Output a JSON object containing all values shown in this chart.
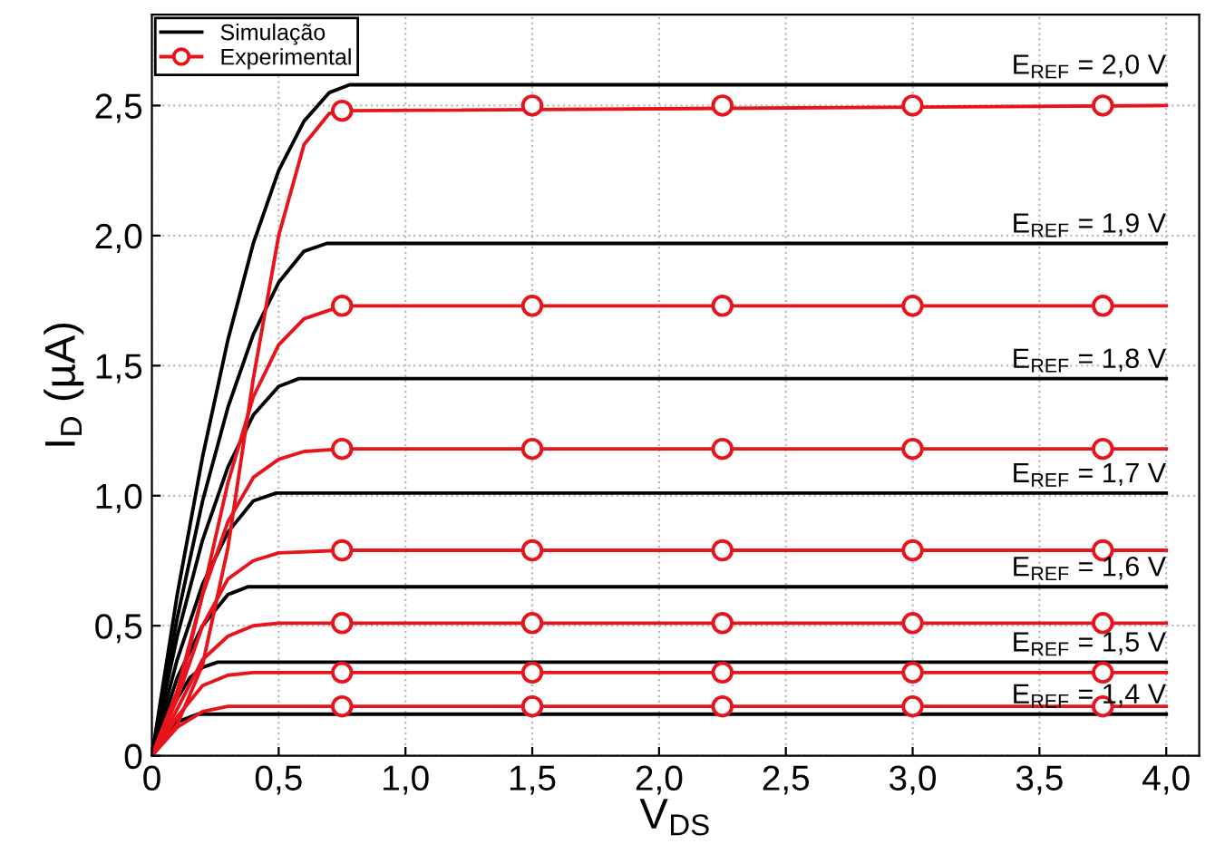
{
  "chart_data": {
    "type": "line",
    "xlabel": "V$_{DS}$",
    "ylabel": "I$_{D}$ (µA)",
    "xlim": [
      0,
      4.13
    ],
    "ylim": [
      0,
      2.85
    ],
    "xticks": [
      0,
      {
        "value": 0.5,
        "label": "0,5"
      },
      {
        "value": 1.0,
        "label": "1,0"
      },
      {
        "value": 1.5,
        "label": "1,5"
      },
      {
        "value": 2.0,
        "label": "2,0"
      },
      {
        "value": 2.5,
        "label": "2,5"
      },
      {
        "value": 3.0,
        "label": "3,0"
      },
      {
        "value": 3.5,
        "label": "3,5"
      },
      {
        "value": 4.0,
        "label": "4,0"
      }
    ],
    "yticks": [
      0,
      {
        "value": 0.5,
        "label": "0,5"
      },
      {
        "value": 1.0,
        "label": "1,0"
      },
      {
        "value": 1.5,
        "label": "1,5"
      },
      {
        "value": 2.0,
        "label": "2,0"
      },
      {
        "value": 2.5,
        "label": "2,5"
      }
    ],
    "grid": true,
    "legend": "top left",
    "marker": "none",
    "line_style": "solid",
    "series": [
      {
        "name": "Simulação",
        "color": "#000000",
        "x": [
          0,
          0.1,
          0.2,
          0.3,
          0.4,
          0.5,
          0.6,
          0.7,
          0.78,
          4.0
        ],
        "values": [
          0,
          0.62,
          1.15,
          1.6,
          1.97,
          2.25,
          2.44,
          2.55,
          2.58,
          2.58
        ]
      },
      {
        "color": "#000000",
        "x": [
          0,
          0.1,
          0.2,
          0.3,
          0.4,
          0.5,
          0.6,
          0.69,
          4.0
        ],
        "values": [
          0,
          0.53,
          0.98,
          1.34,
          1.62,
          1.82,
          1.94,
          1.97,
          1.97
        ]
      },
      {
        "color": "#000000",
        "x": [
          0,
          0.1,
          0.2,
          0.3,
          0.4,
          0.5,
          0.58,
          4.0
        ],
        "values": [
          0,
          0.46,
          0.83,
          1.11,
          1.31,
          1.42,
          1.45,
          1.45
        ]
      },
      {
        "color": "#000000",
        "x": [
          0,
          0.1,
          0.2,
          0.3,
          0.4,
          0.49,
          4.0
        ],
        "values": [
          0,
          0.37,
          0.66,
          0.86,
          0.98,
          1.01,
          1.01
        ]
      },
      {
        "color": "#000000",
        "x": [
          0,
          0.1,
          0.2,
          0.3,
          0.38,
          4.0
        ],
        "values": [
          0,
          0.3,
          0.5,
          0.62,
          0.65,
          0.65
        ]
      },
      {
        "color": "#000000",
        "x": [
          0,
          0.05,
          0.1,
          0.15,
          0.2,
          0.26,
          4.0
        ],
        "values": [
          0,
          0.13,
          0.22,
          0.3,
          0.34,
          0.36,
          0.36
        ]
      },
      {
        "color": "#000000",
        "x": [
          0,
          0.05,
          0.1,
          0.18,
          4.0
        ],
        "values": [
          0,
          0.08,
          0.13,
          0.16,
          0.16
        ]
      },
      {
        "color": "#e8141c",
        "x": [
          0,
          0.1,
          0.2,
          0.3,
          0.4,
          0.5,
          0.6,
          0.7,
          0.75,
          4.0
        ],
        "values": [
          0,
          0.12,
          0.35,
          0.8,
          1.45,
          2.0,
          2.35,
          2.47,
          2.48,
          2.5
        ]
      },
      {
        "color": "#e8141c",
        "x": [
          0,
          0.1,
          0.2,
          0.3,
          0.4,
          0.5,
          0.6,
          0.75,
          4.0
        ],
        "values": [
          0,
          0.22,
          0.62,
          1.05,
          1.38,
          1.58,
          1.68,
          1.73,
          1.73
        ]
      },
      {
        "color": "#e8141c",
        "x": [
          0,
          0.1,
          0.2,
          0.3,
          0.4,
          0.5,
          0.6,
          0.75,
          4.0
        ],
        "values": [
          0,
          0.25,
          0.62,
          0.9,
          1.07,
          1.14,
          1.17,
          1.18,
          1.18
        ]
      },
      {
        "color": "#e8141c",
        "x": [
          0,
          0.1,
          0.2,
          0.3,
          0.4,
          0.5,
          0.75,
          4.0
        ],
        "values": [
          0,
          0.22,
          0.5,
          0.68,
          0.75,
          0.78,
          0.79,
          0.79
        ]
      },
      {
        "color": "#e8141c",
        "x": [
          0,
          0.1,
          0.2,
          0.3,
          0.4,
          0.5,
          4.0
        ],
        "values": [
          0,
          0.18,
          0.37,
          0.46,
          0.5,
          0.51,
          0.51
        ]
      },
      {
        "color": "#e8141c",
        "x": [
          0,
          0.1,
          0.2,
          0.3,
          0.4,
          4.0
        ],
        "values": [
          0,
          0.15,
          0.27,
          0.31,
          0.32,
          0.32
        ]
      },
      {
        "color": "#e8141c",
        "x": [
          0,
          0.1,
          0.2,
          0.3,
          4.0
        ],
        "values": [
          0,
          0.11,
          0.17,
          0.19,
          0.19
        ]
      },
      {
        "name": "Experimental",
        "type": "scatter",
        "marker": "circle",
        "color": "#e8141c",
        "x": [
          0.75,
          1.5,
          2.25,
          3.0,
          3.75
        ],
        "values": [
          2.48,
          2.5,
          2.5,
          2.5,
          2.5
        ]
      },
      {
        "type": "scatter",
        "marker": "circle",
        "color": "#e8141c",
        "x": [
          0.75,
          1.5,
          2.25,
          3.0,
          3.75
        ],
        "values": [
          1.73,
          1.73,
          1.73,
          1.73,
          1.73
        ]
      },
      {
        "type": "scatter",
        "marker": "circle",
        "color": "#e8141c",
        "x": [
          0.75,
          1.5,
          2.25,
          3.0,
          3.75
        ],
        "values": [
          1.18,
          1.18,
          1.18,
          1.18,
          1.18
        ]
      },
      {
        "type": "scatter",
        "marker": "circle",
        "color": "#e8141c",
        "x": [
          0.75,
          1.5,
          2.25,
          3.0,
          3.75
        ],
        "values": [
          0.79,
          0.79,
          0.79,
          0.79,
          0.79
        ]
      },
      {
        "type": "scatter",
        "marker": "circle",
        "color": "#e8141c",
        "x": [
          0.75,
          1.5,
          2.25,
          3.0,
          3.75
        ],
        "values": [
          0.51,
          0.51,
          0.51,
          0.51,
          0.51
        ]
      },
      {
        "type": "scatter",
        "marker": "circle",
        "color": "#e8141c",
        "x": [
          0.75,
          1.5,
          2.25,
          3.0,
          3.75
        ],
        "values": [
          0.32,
          0.32,
          0.32,
          0.32,
          0.32
        ]
      },
      {
        "type": "scatter",
        "marker": "circle",
        "color": "#e8141c",
        "x": [
          0.75,
          1.5,
          2.25,
          3.0,
          3.75
        ],
        "values": [
          0.19,
          0.19,
          0.19,
          0.19,
          0.19
        ]
      }
    ],
    "annotations": [
      "E$_{REF}$ = 2,0 V",
      "E$_{REF}$ = 1,9 V",
      "E$_{REF}$ = 1,8 V",
      "E$_{REF}$ = 1,7 V",
      "E$_{REF}$ = 1,6 V",
      "E$_{REF}$ = 1,5 V",
      "E$_{REF}$ = 1,4 V"
    ]
  }
}
